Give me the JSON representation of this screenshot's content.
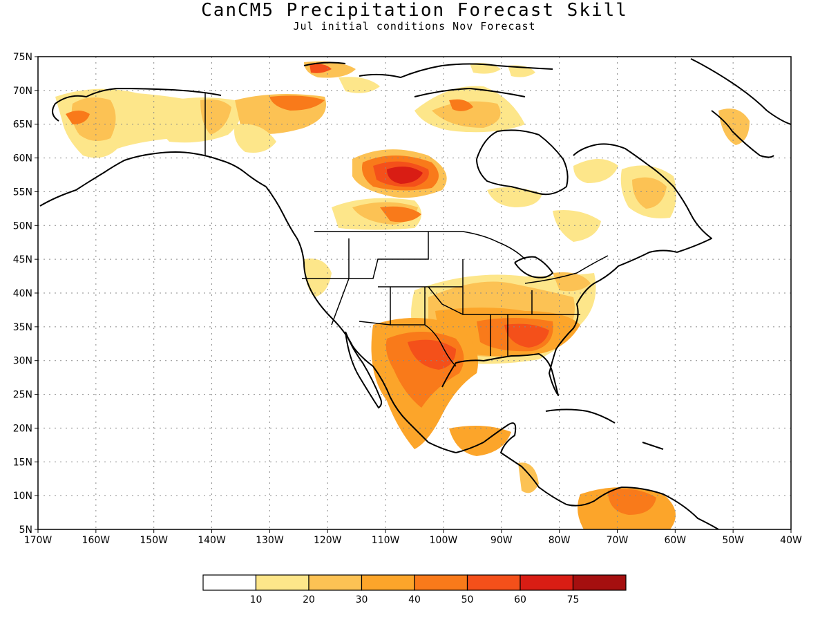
{
  "title": "CanCM5 Precipitation Forecast Skill",
  "subtitle": "Jul initial conditions   Nov Forecast",
  "map": {
    "lon_range": [
      -170,
      -40
    ],
    "lat_range": [
      5,
      75
    ],
    "lat_labels": [
      "75N",
      "70N",
      "65N",
      "60N",
      "55N",
      "50N",
      "45N",
      "40N",
      "35N",
      "30N",
      "25N",
      "20N",
      "15N",
      "10N",
      "5N"
    ],
    "lon_labels": [
      "170W",
      "160W",
      "150W",
      "140W",
      "130W",
      "120W",
      "110W",
      "100W",
      "90W",
      "80W",
      "70W",
      "60W",
      "50W",
      "40W"
    ],
    "grid": "dotted",
    "skill_regions": [
      {
        "name": "alaska-west",
        "lon": -158,
        "lat": 64,
        "level": 20
      },
      {
        "name": "canada-prairies",
        "lon": -107,
        "lat": 57.5,
        "level": 60
      },
      {
        "name": "us-southeast",
        "lon": -85,
        "lat": 33,
        "level": 50
      },
      {
        "name": "texas-mexico",
        "lon": -100,
        "lat": 30,
        "level": 50
      },
      {
        "name": "northern-south-america",
        "lon": -70,
        "lat": 8,
        "level": 40
      }
    ]
  },
  "colorbar": {
    "labels": [
      "10",
      "20",
      "30",
      "40",
      "50",
      "60",
      "75"
    ],
    "colors": [
      "#ffffff",
      "#fde68a",
      "#fcc254",
      "#fca52a",
      "#f97a1a",
      "#f4501a",
      "#d91d14",
      "#a50f0f"
    ]
  }
}
